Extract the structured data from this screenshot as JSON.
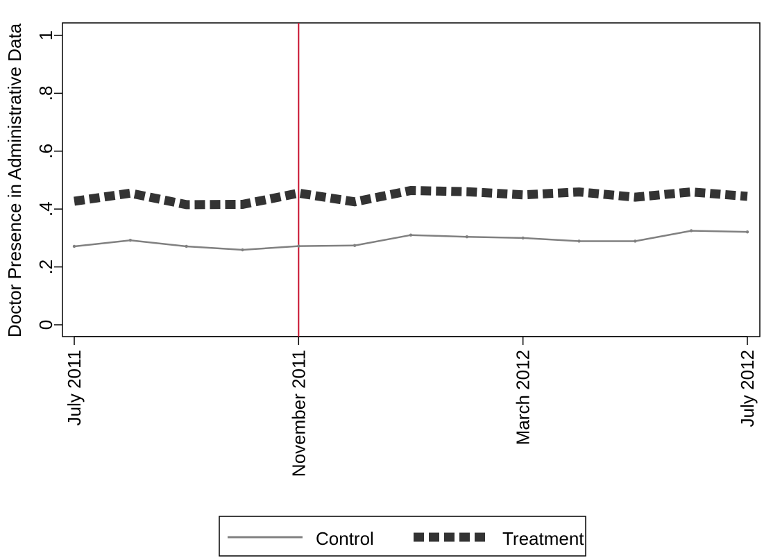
{
  "chart_data": {
    "type": "line",
    "ylabel": "Doctor Presence in Administrative Data",
    "xlabel": "",
    "ylim": [
      0,
      1
    ],
    "yticks": [
      {
        "value": 0,
        "label": "0"
      },
      {
        "value": 0.2,
        "label": ".2"
      },
      {
        "value": 0.4,
        "label": ".4"
      },
      {
        "value": 0.6,
        "label": ".6"
      },
      {
        "value": 0.8,
        "label": ".8"
      },
      {
        "value": 1,
        "label": "1"
      }
    ],
    "x": [
      "2011-07",
      "2011-08",
      "2011-09",
      "2011-10",
      "2011-11",
      "2011-12",
      "2012-01",
      "2012-02",
      "2012-03",
      "2012-04",
      "2012-05",
      "2012-06",
      "2012-07"
    ],
    "xticks": [
      {
        "x": "2011-07",
        "label": "July 2011"
      },
      {
        "x": "2011-11",
        "label": "November 2011"
      },
      {
        "x": "2012-03",
        "label": "March 2012"
      },
      {
        "x": "2012-07",
        "label": "July 2012"
      }
    ],
    "vline": {
      "x": "2011-11",
      "color": "#c8102e"
    },
    "series": [
      {
        "name": "Control",
        "style": "thin-solid",
        "color": "#808080",
        "values": [
          0.271,
          0.292,
          0.271,
          0.259,
          0.272,
          0.274,
          0.31,
          0.304,
          0.3,
          0.289,
          0.289,
          0.325,
          0.321
        ]
      },
      {
        "name": "Treatment",
        "style": "thick-dashed",
        "color": "#333333",
        "values": [
          0.427,
          0.455,
          0.415,
          0.416,
          0.455,
          0.425,
          0.464,
          0.46,
          0.449,
          0.459,
          0.441,
          0.459,
          0.444
        ]
      }
    ],
    "grid": false,
    "legend_position": "bottom"
  }
}
